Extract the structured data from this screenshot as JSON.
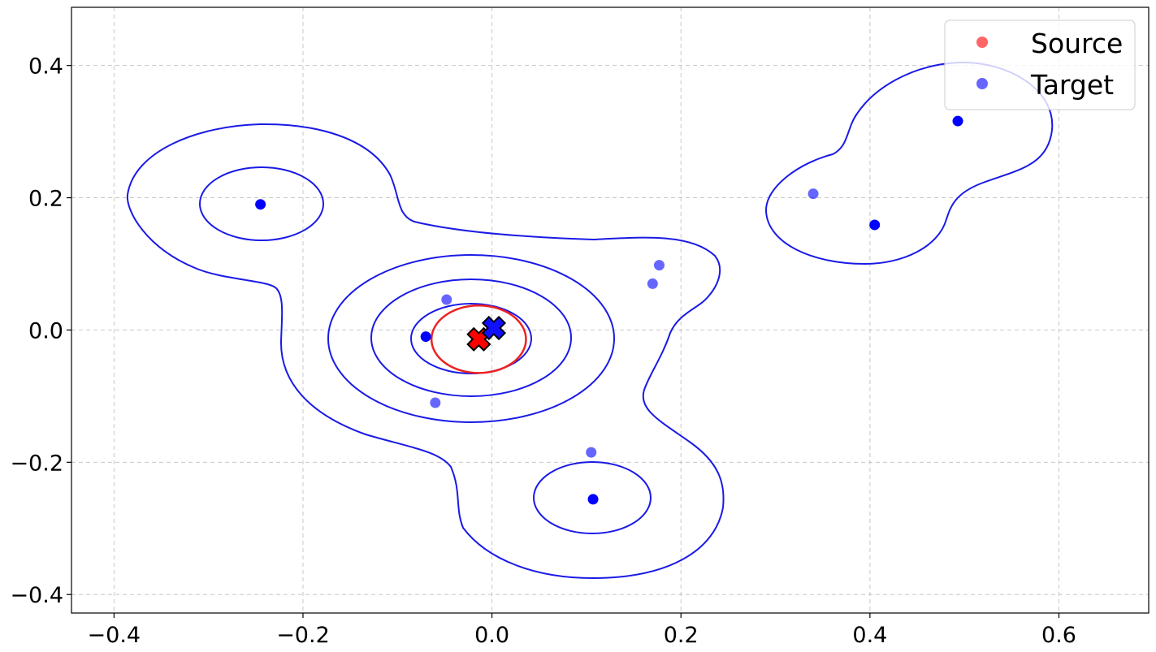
{
  "chart_data": {
    "type": "scatter",
    "title": "",
    "xlabel": "",
    "ylabel": "",
    "xlim": [
      -0.445,
      0.695
    ],
    "ylim": [
      -0.428,
      0.488
    ],
    "x_ticks": [
      -0.4,
      -0.2,
      0.0,
      0.2,
      0.4,
      0.6
    ],
    "y_ticks": [
      -0.4,
      -0.2,
      0.0,
      0.2,
      0.4
    ],
    "x_tick_labels": [
      "−0.4",
      "−0.2",
      "0.0",
      "0.2",
      "0.4",
      "0.6"
    ],
    "y_tick_labels": [
      "−0.4",
      "−0.2",
      "0.0",
      "0.2",
      "0.4"
    ],
    "grid": true,
    "legend_position": "top-right",
    "legend": [
      {
        "label": "Source",
        "color": "#ff6666"
      },
      {
        "label": "Target",
        "color": "#6666ff"
      }
    ],
    "series": [
      {
        "name": "Target",
        "color": "#0000ff",
        "points": [
          {
            "x": -0.245,
            "y": 0.19,
            "alpha": 1.0
          },
          {
            "x": -0.07,
            "y": -0.01,
            "alpha": 1.0
          },
          {
            "x": -0.048,
            "y": 0.046,
            "alpha": 0.6
          },
          {
            "x": -0.06,
            "y": -0.11,
            "alpha": 0.6
          },
          {
            "x": 0.105,
            "y": -0.185,
            "alpha": 0.6
          },
          {
            "x": 0.107,
            "y": -0.256,
            "alpha": 1.0
          },
          {
            "x": 0.17,
            "y": 0.07,
            "alpha": 0.6
          },
          {
            "x": 0.177,
            "y": 0.098,
            "alpha": 0.6
          },
          {
            "x": 0.34,
            "y": 0.206,
            "alpha": 0.6
          },
          {
            "x": 0.405,
            "y": 0.159,
            "alpha": 1.0
          },
          {
            "x": 0.493,
            "y": 0.316,
            "alpha": 1.0
          }
        ]
      }
    ],
    "centroids": [
      {
        "name": "Source",
        "x": -0.014,
        "y": -0.014,
        "color": "#ff0000"
      },
      {
        "name": "Target",
        "x": 0.002,
        "y": 0.003,
        "color": "#1010ff"
      }
    ],
    "contours": {
      "target_color": "#1a1ae6",
      "source_color": "#ee2222",
      "source_ellipse": {
        "cx": -0.014,
        "cy": -0.014,
        "rx": 0.05,
        "ry": 0.051
      }
    }
  }
}
